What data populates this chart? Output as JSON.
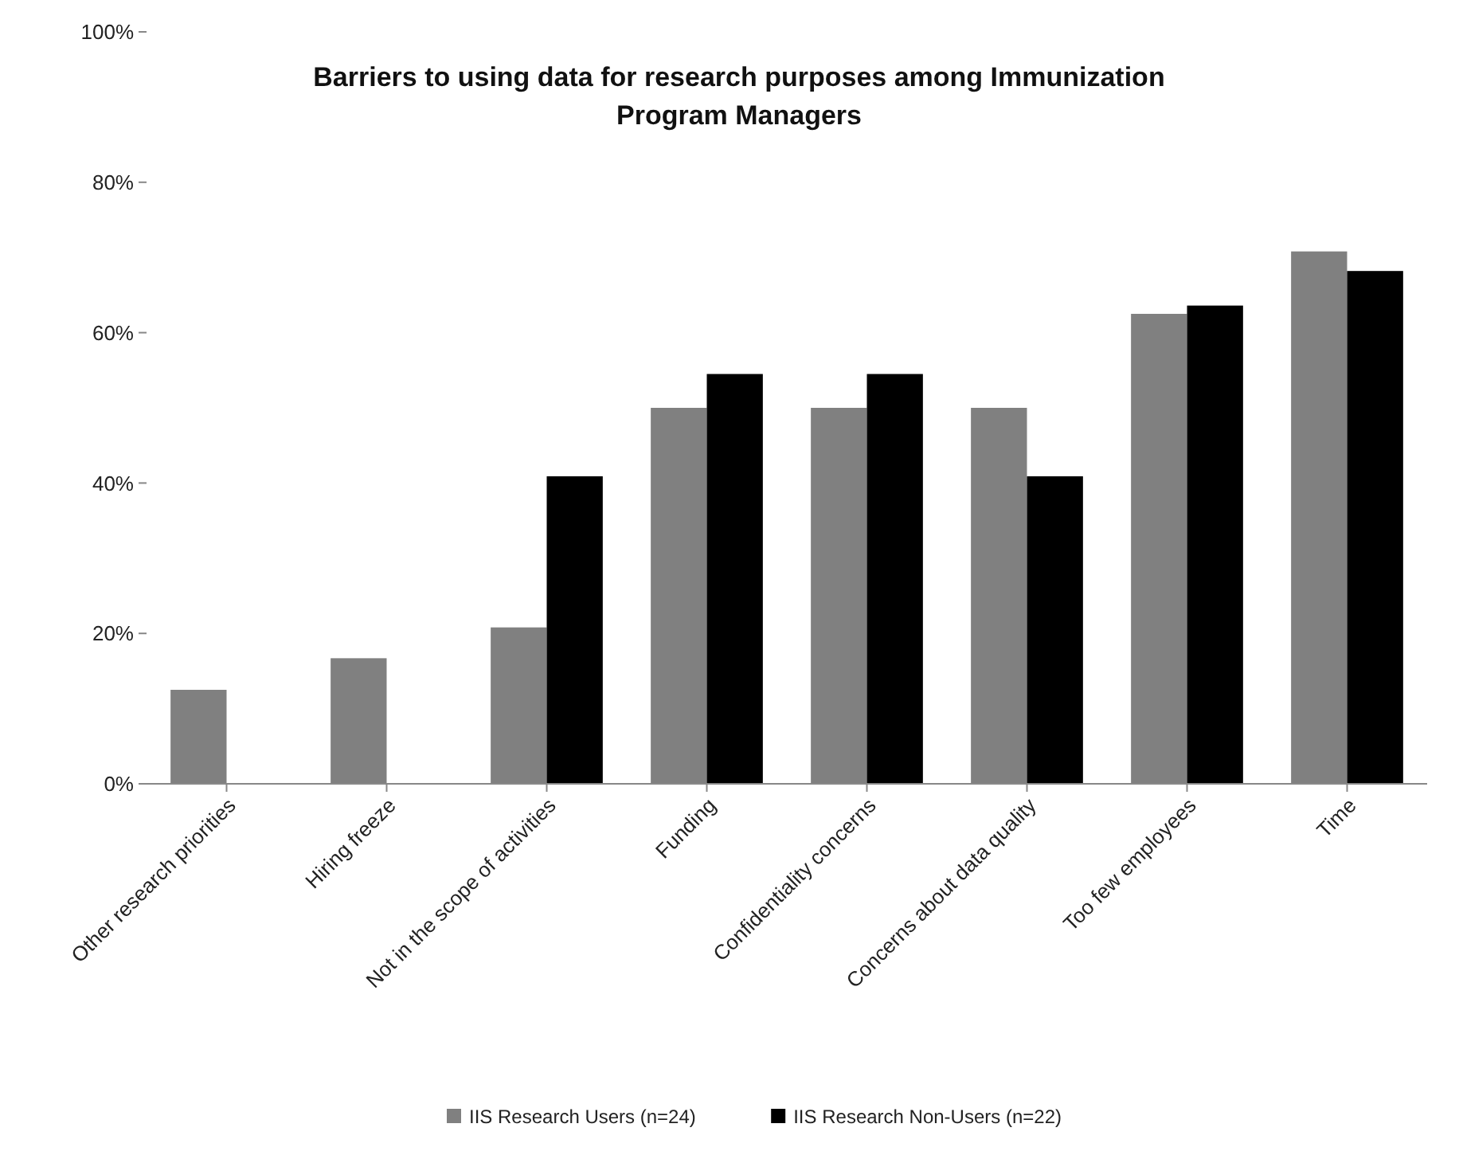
{
  "chart_data": {
    "type": "bar",
    "title": "Barriers to using data for research purposes among Immunization Program Managers",
    "categories": [
      "Other research priorities",
      "Hiring freeze",
      "Not in the scope of activities",
      "Funding",
      "Confidentiality concerns",
      "Concerns about data quality",
      "Too few employees",
      "Time"
    ],
    "series": [
      {
        "name": "IIS  Research Users (n=24)",
        "color": "#808080",
        "values": [
          12.5,
          16.7,
          20.8,
          50,
          50,
          50,
          62.5,
          70.8
        ]
      },
      {
        "name": "IIS Research Non-Users (n=22)",
        "color": "#000000",
        "values": [
          0,
          0,
          40.9,
          54.5,
          54.5,
          40.9,
          63.6,
          68.2
        ]
      }
    ],
    "ylim": [
      0,
      100
    ],
    "yticks": [
      {
        "value": 0,
        "label": "0%"
      },
      {
        "value": 20,
        "label": "20%"
      },
      {
        "value": 40,
        "label": "40%"
      },
      {
        "value": 60,
        "label": "60%"
      },
      {
        "value": 80,
        "label": "80%"
      },
      {
        "value": 100,
        "label": "100%"
      }
    ],
    "legend": "bottom"
  }
}
